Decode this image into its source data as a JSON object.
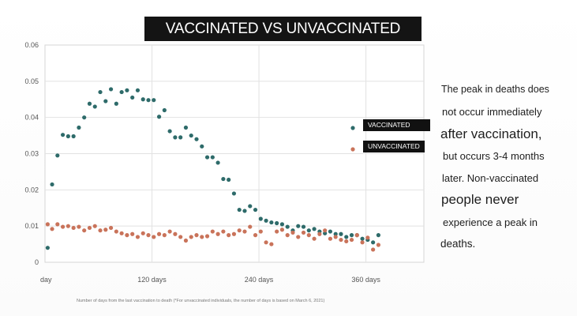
{
  "chart_data": {
    "type": "scatter",
    "title": "VACCINATED VS UNVACCINATED",
    "xlabel": "Number of days from the last vaccination to death (*For unvaccinated individuals, the number of days is based on March 6, 2021)",
    "ylabel": "",
    "x_tick_labels": [
      "day",
      "120 days",
      "240 days",
      "360 days"
    ],
    "x_ticks": [
      0,
      120,
      240,
      360
    ],
    "xlim": [
      0,
      425
    ],
    "y_tick_labels": [
      "0",
      "0.01",
      "0.02",
      "0.03",
      "0.04",
      "0.05",
      "0.06"
    ],
    "y_ticks": [
      0,
      0.01,
      0.02,
      0.03,
      0.04,
      0.05,
      0.06
    ],
    "ylim": [
      0,
      0.06
    ],
    "grid": true,
    "legend_position": "right",
    "series": [
      {
        "name": "VACCINATED",
        "color": "#2e6b6a",
        "points": [
          [
            3,
            0.004
          ],
          [
            8,
            0.0215
          ],
          [
            14,
            0.0295
          ],
          [
            20,
            0.0352
          ],
          [
            26,
            0.0348
          ],
          [
            32,
            0.0348
          ],
          [
            38,
            0.0372
          ],
          [
            44,
            0.04
          ],
          [
            50,
            0.0438
          ],
          [
            56,
            0.043
          ],
          [
            62,
            0.047
          ],
          [
            68,
            0.0445
          ],
          [
            74,
            0.0478
          ],
          [
            80,
            0.0438
          ],
          [
            86,
            0.047
          ],
          [
            92,
            0.0475
          ],
          [
            98,
            0.0455
          ],
          [
            104,
            0.0475
          ],
          [
            110,
            0.045
          ],
          [
            116,
            0.0448
          ],
          [
            122,
            0.0448
          ],
          [
            128,
            0.0402
          ],
          [
            134,
            0.042
          ],
          [
            140,
            0.0362
          ],
          [
            146,
            0.0345
          ],
          [
            152,
            0.0345
          ],
          [
            158,
            0.0372
          ],
          [
            164,
            0.035
          ],
          [
            170,
            0.034
          ],
          [
            176,
            0.032
          ],
          [
            182,
            0.029
          ],
          [
            188,
            0.029
          ],
          [
            194,
            0.0275
          ],
          [
            200,
            0.023
          ],
          [
            206,
            0.0228
          ],
          [
            212,
            0.019
          ],
          [
            218,
            0.0145
          ],
          [
            224,
            0.0142
          ],
          [
            230,
            0.0155
          ],
          [
            236,
            0.0145
          ],
          [
            242,
            0.012
          ],
          [
            248,
            0.0115
          ],
          [
            254,
            0.011
          ],
          [
            260,
            0.0108
          ],
          [
            266,
            0.0105
          ],
          [
            272,
            0.0098
          ],
          [
            278,
            0.0088
          ],
          [
            284,
            0.01
          ],
          [
            290,
            0.0098
          ],
          [
            296,
            0.0088
          ],
          [
            302,
            0.0092
          ],
          [
            308,
            0.0085
          ],
          [
            314,
            0.008
          ],
          [
            320,
            0.0085
          ],
          [
            326,
            0.0078
          ],
          [
            332,
            0.0078
          ],
          [
            338,
            0.007
          ],
          [
            344,
            0.0075
          ],
          [
            350,
            0.0075
          ],
          [
            356,
            0.0065
          ],
          [
            362,
            0.0062
          ],
          [
            368,
            0.0055
          ],
          [
            374,
            0.0075
          ]
        ]
      },
      {
        "name": "UNVACCINATED",
        "color": "#c9735a",
        "points": [
          [
            3,
            0.0105
          ],
          [
            8,
            0.0092
          ],
          [
            14,
            0.0105
          ],
          [
            20,
            0.0098
          ],
          [
            26,
            0.01
          ],
          [
            32,
            0.0095
          ],
          [
            38,
            0.0098
          ],
          [
            44,
            0.0088
          ],
          [
            50,
            0.0095
          ],
          [
            56,
            0.01
          ],
          [
            62,
            0.0088
          ],
          [
            68,
            0.009
          ],
          [
            74,
            0.0095
          ],
          [
            80,
            0.0085
          ],
          [
            86,
            0.008
          ],
          [
            92,
            0.0075
          ],
          [
            98,
            0.0078
          ],
          [
            104,
            0.007
          ],
          [
            110,
            0.008
          ],
          [
            116,
            0.0075
          ],
          [
            122,
            0.007
          ],
          [
            128,
            0.0078
          ],
          [
            134,
            0.0075
          ],
          [
            140,
            0.0085
          ],
          [
            146,
            0.0078
          ],
          [
            152,
            0.007
          ],
          [
            158,
            0.006
          ],
          [
            164,
            0.007
          ],
          [
            170,
            0.0075
          ],
          [
            176,
            0.007
          ],
          [
            182,
            0.0072
          ],
          [
            188,
            0.0085
          ],
          [
            194,
            0.0078
          ],
          [
            200,
            0.0085
          ],
          [
            206,
            0.0075
          ],
          [
            212,
            0.0078
          ],
          [
            218,
            0.0088
          ],
          [
            224,
            0.0085
          ],
          [
            230,
            0.0098
          ],
          [
            236,
            0.0075
          ],
          [
            242,
            0.0085
          ],
          [
            248,
            0.0055
          ],
          [
            254,
            0.005
          ],
          [
            260,
            0.0085
          ],
          [
            266,
            0.009
          ],
          [
            272,
            0.0075
          ],
          [
            278,
            0.0082
          ],
          [
            284,
            0.007
          ],
          [
            290,
            0.0082
          ],
          [
            296,
            0.0075
          ],
          [
            302,
            0.0065
          ],
          [
            308,
            0.0078
          ],
          [
            314,
            0.0088
          ],
          [
            320,
            0.0065
          ],
          [
            326,
            0.007
          ],
          [
            332,
            0.0062
          ],
          [
            338,
            0.0058
          ],
          [
            344,
            0.0062
          ],
          [
            350,
            0.0075
          ],
          [
            356,
            0.0055
          ],
          [
            362,
            0.0068
          ],
          [
            368,
            0.0035
          ],
          [
            374,
            0.0048
          ]
        ]
      }
    ]
  },
  "side_text_lines": [
    "The peak in deaths does",
    "not occur immediately",
    "after vaccination,",
    "but occurs 3-4 months",
    "later. Non-vaccinated",
    "people never",
    "experience a peak in",
    "deaths."
  ]
}
